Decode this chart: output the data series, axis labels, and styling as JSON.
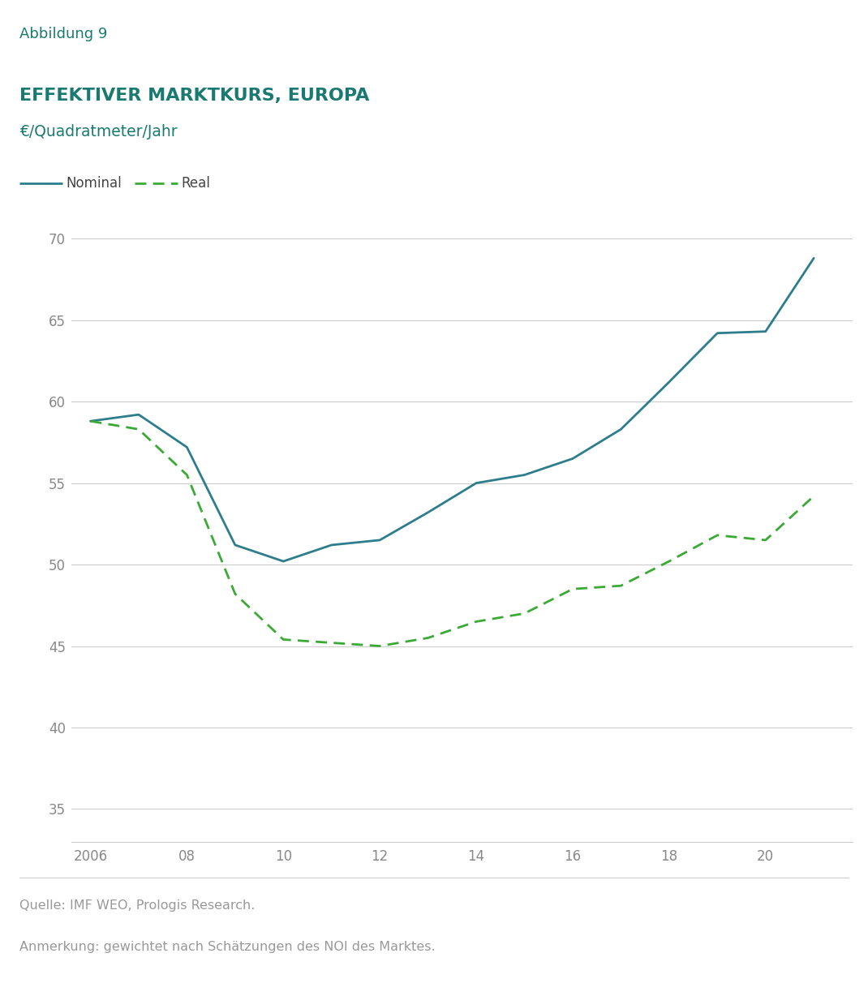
{
  "header_label": "Abbildung 9",
  "header_bg": "#dde3e8",
  "title": "EFFEKTIVER MARKTKURS, EUROPA",
  "subtitle": "€/Quadratmeter/Jahr",
  "title_color": "#1a7a72",
  "subtitle_color": "#1a7a72",
  "legend_nominal": "Nominal",
  "legend_real": "Real",
  "nominal_color": "#2e7d8c",
  "real_color": "#3aaa35",
  "bg_color": "#ffffff",
  "plot_bg": "#ffffff",
  "grid_color": "#cccccc",
  "footnote1": "Quelle: IMF WEO, Prologis Research.",
  "footnote2": "Anmerkung: gewichtet nach Schätzungen des NOI des Marktes.",
  "footnote_color": "#999999",
  "tick_color": "#888888",
  "x_nominal": [
    2006,
    2007,
    2008,
    2009,
    2010,
    2011,
    2012,
    2013,
    2014,
    2015,
    2016,
    2017,
    2018,
    2019,
    2020,
    2021
  ],
  "y_nominal": [
    58.8,
    59.2,
    57.2,
    51.2,
    50.2,
    51.2,
    51.5,
    53.2,
    55.0,
    55.5,
    56.5,
    58.3,
    61.2,
    64.2,
    64.3,
    68.8
  ],
  "x_real": [
    2006,
    2007,
    2008,
    2009,
    2010,
    2011,
    2012,
    2013,
    2014,
    2015,
    2016,
    2017,
    2018,
    2019,
    2020,
    2021
  ],
  "y_real": [
    58.8,
    58.3,
    55.5,
    48.2,
    45.4,
    45.2,
    45.0,
    45.5,
    46.5,
    47.0,
    48.5,
    48.7,
    50.2,
    51.8,
    51.5,
    54.2
  ],
  "xlim": [
    2005.6,
    2021.8
  ],
  "ylim": [
    33,
    71.5
  ],
  "yticks": [
    35,
    40,
    45,
    50,
    55,
    60,
    65,
    70
  ],
  "xticks": [
    2006,
    2008,
    2010,
    2012,
    2014,
    2016,
    2018,
    2020
  ],
  "xticklabels": [
    "2006",
    "08",
    "10",
    "12",
    "14",
    "16",
    "18",
    "20"
  ]
}
